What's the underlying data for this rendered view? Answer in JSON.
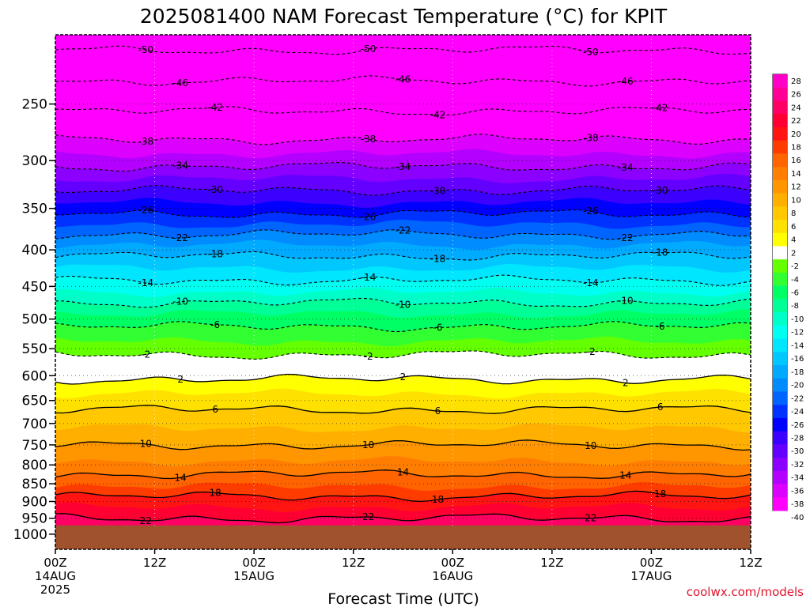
{
  "chart_data": {
    "type": "heatmap",
    "title": "2025081400 NAM Forecast Temperature (°C) for KPIT",
    "xlabel": "Forecast Time (UTC)",
    "ylabel": "",
    "y_axis": {
      "scale": "log",
      "inverted": true,
      "range_hpa": [
        1050,
        200
      ],
      "ticks": [
        250,
        300,
        350,
        400,
        450,
        500,
        550,
        600,
        650,
        700,
        750,
        800,
        850,
        900,
        950,
        1000
      ]
    },
    "x_axis": {
      "range_hours": [
        0,
        84
      ],
      "ticks": [
        {
          "hour": 0,
          "lines": [
            "00Z",
            "14AUG",
            "2025"
          ]
        },
        {
          "hour": 12,
          "lines": [
            "12Z"
          ]
        },
        {
          "hour": 24,
          "lines": [
            "00Z",
            "15AUG"
          ]
        },
        {
          "hour": 36,
          "lines": [
            "12Z"
          ]
        },
        {
          "hour": 48,
          "lines": [
            "00Z",
            "16AUG"
          ]
        },
        {
          "hour": 60,
          "lines": [
            "12Z"
          ]
        },
        {
          "hour": 72,
          "lines": [
            "00Z",
            "17AUG"
          ]
        },
        {
          "hour": 84,
          "lines": [
            "12Z"
          ]
        }
      ]
    },
    "ground_level_hpa": 972,
    "grid": true,
    "colorbar": {
      "placement": "right",
      "levels": [
        28,
        26,
        24,
        22,
        20,
        18,
        16,
        14,
        12,
        10,
        8,
        6,
        4,
        2,
        -2,
        -4,
        -6,
        -8,
        -10,
        -12,
        -14,
        -16,
        -18,
        -20,
        -22,
        -24,
        -26,
        -28,
        -30,
        -32,
        -34,
        -36,
        -38,
        -40
      ],
      "colors": [
        "#ff00c8",
        "#ff0096",
        "#ff0064",
        "#ff0032",
        "#ff1414",
        "#ff3c00",
        "#ff6400",
        "#ff7d00",
        "#ff9600",
        "#ffaf00",
        "#ffc800",
        "#ffe100",
        "#ffff00",
        "#ffffff",
        "#64ff00",
        "#32ff32",
        "#00ff64",
        "#00ff96",
        "#00ffc8",
        "#00fff0",
        "#00e6ff",
        "#00c8ff",
        "#00aaff",
        "#008cff",
        "#0064ff",
        "#0032ff",
        "#0000ff",
        "#3c00ff",
        "#6400ff",
        "#8c00ff",
        "#b400ff",
        "#dc00ff",
        "#ff00ff"
      ]
    },
    "temperature_profile": {
      "pressure_hpa": [
        1000,
        950,
        900,
        850,
        800,
        750,
        700,
        650,
        600,
        550,
        500,
        450,
        400,
        350,
        300,
        250,
        200
      ],
      "temp_c": [
        25,
        22,
        19,
        15.5,
        12.5,
        10,
        7.5,
        5,
        1.5,
        -3,
        -7,
        -13,
        -19,
        -27,
        -35,
        -43,
        -52
      ]
    },
    "contour_labels": [
      "-50",
      "-46",
      "-42",
      "-38",
      "-34",
      "-30",
      "-26",
      "-22",
      "-18",
      "-14",
      "-10",
      "-6",
      "-2",
      "2",
      "6",
      "10",
      "14",
      "18",
      "22"
    ]
  },
  "credit": "coolwx.com/models"
}
